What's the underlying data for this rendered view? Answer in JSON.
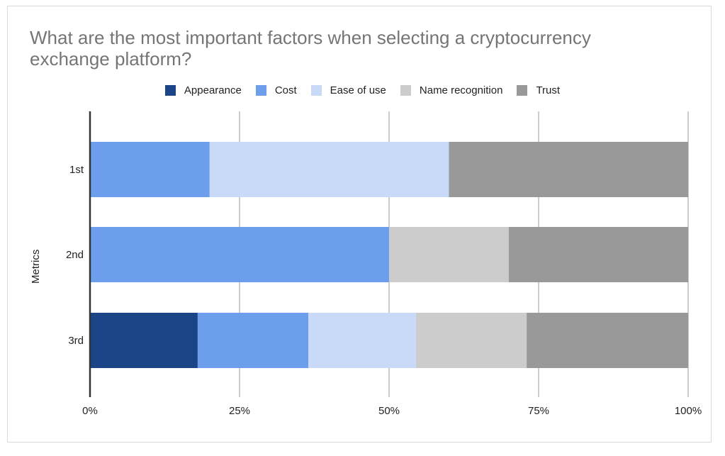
{
  "colors": {
    "Appearance": "#1c4587",
    "Cost": "#6d9eeb",
    "Ease of use": "#c9daf8",
    "Name recognition": "#cccccc",
    "Trust": "#999999",
    "grid": "#cccccc",
    "axis": "#333333"
  },
  "chart_data": {
    "type": "bar",
    "orientation": "horizontal",
    "stacked": "percent",
    "title": "What are the most important factors when selecting a cryptocurrency exchange platform?",
    "ylabel": "Metrics",
    "xlabel": "",
    "categories": [
      "1st",
      "2nd",
      "3rd"
    ],
    "x_ticks": [
      "0%",
      "25%",
      "50%",
      "75%",
      "100%"
    ],
    "xlim": [
      0,
      100
    ],
    "legend_position": "top",
    "grid": true,
    "series": [
      {
        "name": "Appearance",
        "values": [
          0,
          0,
          18
        ]
      },
      {
        "name": "Cost",
        "values": [
          20,
          50,
          18.5
        ]
      },
      {
        "name": "Ease of use",
        "values": [
          40,
          0,
          18
        ]
      },
      {
        "name": "Name recognition",
        "values": [
          0,
          20,
          18.5
        ]
      },
      {
        "name": "Trust",
        "values": [
          40,
          30,
          27
        ]
      }
    ]
  }
}
